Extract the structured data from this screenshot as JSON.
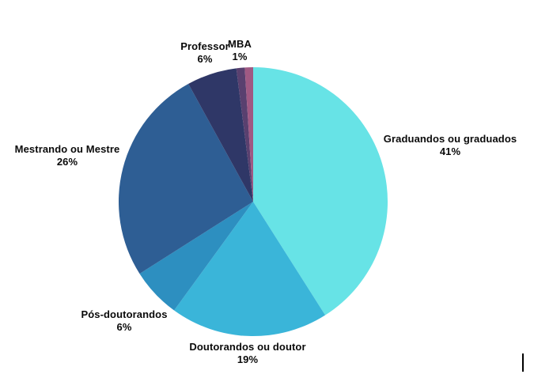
{
  "chart_data": {
    "type": "pie",
    "title": "",
    "legend": "none",
    "background": "#ffffff",
    "label_color": "#0a0a0a",
    "start_angle_deg": -90,
    "direction": "clockwise",
    "slices": [
      {
        "label": "Graduandos ou graduados",
        "value": 41,
        "pct": "41%",
        "color": "#67e3e6"
      },
      {
        "label": "Doutorandos ou doutor",
        "value": 19,
        "pct": "19%",
        "color": "#3ab5d9"
      },
      {
        "label": "Pós-doutorandos",
        "value": 6,
        "pct": "6%",
        "color": "#2d8fc0"
      },
      {
        "label": "Mestrando ou Mestre",
        "value": 26,
        "pct": "26%",
        "color": "#2e5e94"
      },
      {
        "label": "Professor",
        "value": 6,
        "pct": "6%",
        "color": "#2f3767"
      },
      {
        "label": "MBA",
        "value": 1,
        "pct": "1%",
        "color": "#59406f"
      },
      {
        "label": "",
        "value": 1,
        "pct": "",
        "color": "#a05983"
      }
    ]
  },
  "artifacts": {
    "text_cursor_visible": true
  }
}
